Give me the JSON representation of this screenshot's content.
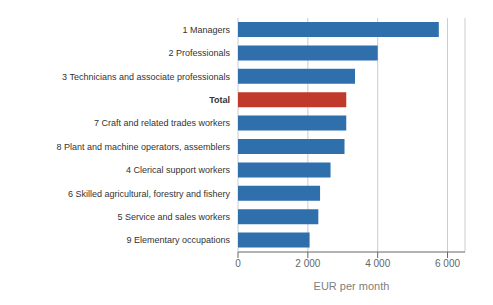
{
  "chart_data": {
    "type": "bar",
    "orientation": "horizontal",
    "categories": [
      "9 Elementary occupations",
      "5 Service and sales workers",
      "6 Skilled agricultural, forestry and fishery",
      "4 Clerical support workers",
      "8 Plant and machine operators, assemblers",
      "7 Craft and related trades workers",
      "Total",
      "3 Technicians and associate professionals",
      "2 Professionals",
      "1 Managers"
    ],
    "values": [
      2050,
      2300,
      2350,
      2650,
      3050,
      3100,
      3100,
      3350,
      4000,
      5750
    ],
    "colors": [
      "#2e6fac",
      "#2e6fac",
      "#2e6fac",
      "#2e6fac",
      "#2e6fac",
      "#2e6fac",
      "#c0392b",
      "#2e6fac",
      "#2e6fac",
      "#2e6fac"
    ],
    "xlabel": "EUR  per month",
    "xlim": [
      0,
      6500
    ],
    "xticks": [
      0,
      {
        "value": 2000,
        "label": "2 000"
      },
      {
        "value": 4000,
        "label": "4 000"
      },
      {
        "value": 6000,
        "label": "6 000"
      }
    ],
    "grid": true
  }
}
